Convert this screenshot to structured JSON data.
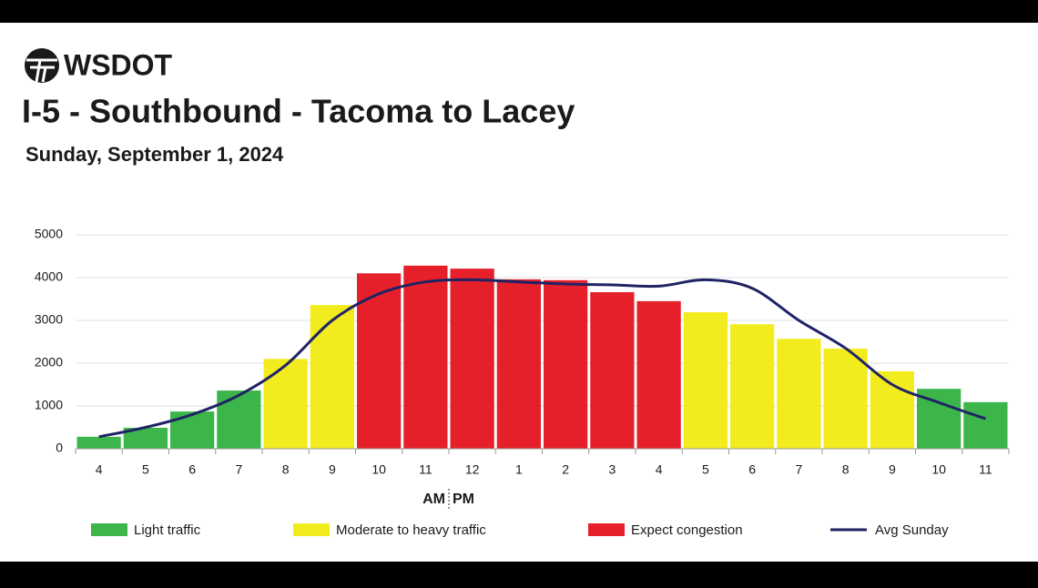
{
  "logo": "WSDOT",
  "chart_data": {
    "type": "bar",
    "title": "I-5 - Southbound - Tacoma to Lacey",
    "subtitle": "Sunday, September 1, 2024",
    "categories": [
      "4",
      "5",
      "6",
      "7",
      "8",
      "9",
      "10",
      "11",
      "12",
      "1",
      "2",
      "3",
      "4",
      "5",
      "6",
      "7",
      "8",
      "9",
      "10",
      "11"
    ],
    "am_label": "AM",
    "pm_label": "PM",
    "bars": {
      "values": [
        280,
        490,
        870,
        1360,
        2100,
        3360,
        4100,
        4280,
        4210,
        3960,
        3940,
        3660,
        3450,
        3190,
        2910,
        2570,
        2340,
        1810,
        1400,
        1090
      ],
      "colors": [
        "#3cb54a",
        "#3cb54a",
        "#3cb54a",
        "#3cb54a",
        "#f2ec1f",
        "#f2ec1f",
        "#e5202a",
        "#e5202a",
        "#e5202a",
        "#e5202a",
        "#e5202a",
        "#e5202a",
        "#e5202a",
        "#f2ec1f",
        "#f2ec1f",
        "#f2ec1f",
        "#f2ec1f",
        "#f2ec1f",
        "#3cb54a",
        "#3cb54a"
      ]
    },
    "line": {
      "name": "Avg Sunday",
      "color": "#1f2366",
      "values": [
        280,
        500,
        800,
        1250,
        1950,
        3000,
        3620,
        3900,
        3950,
        3900,
        3850,
        3830,
        3800,
        3950,
        3750,
        3000,
        2350,
        1500,
        1080,
        700
      ]
    },
    "legend": [
      {
        "name": "Light traffic",
        "color": "#3cb54a"
      },
      {
        "name": "Moderate to heavy traffic",
        "color": "#f2ec1f"
      },
      {
        "name": "Expect congestion",
        "color": "#e5202a"
      }
    ],
    "ylim": [
      0,
      5000
    ],
    "yticks": [
      0,
      1000,
      2000,
      3000,
      4000,
      5000
    ],
    "grid": true
  }
}
